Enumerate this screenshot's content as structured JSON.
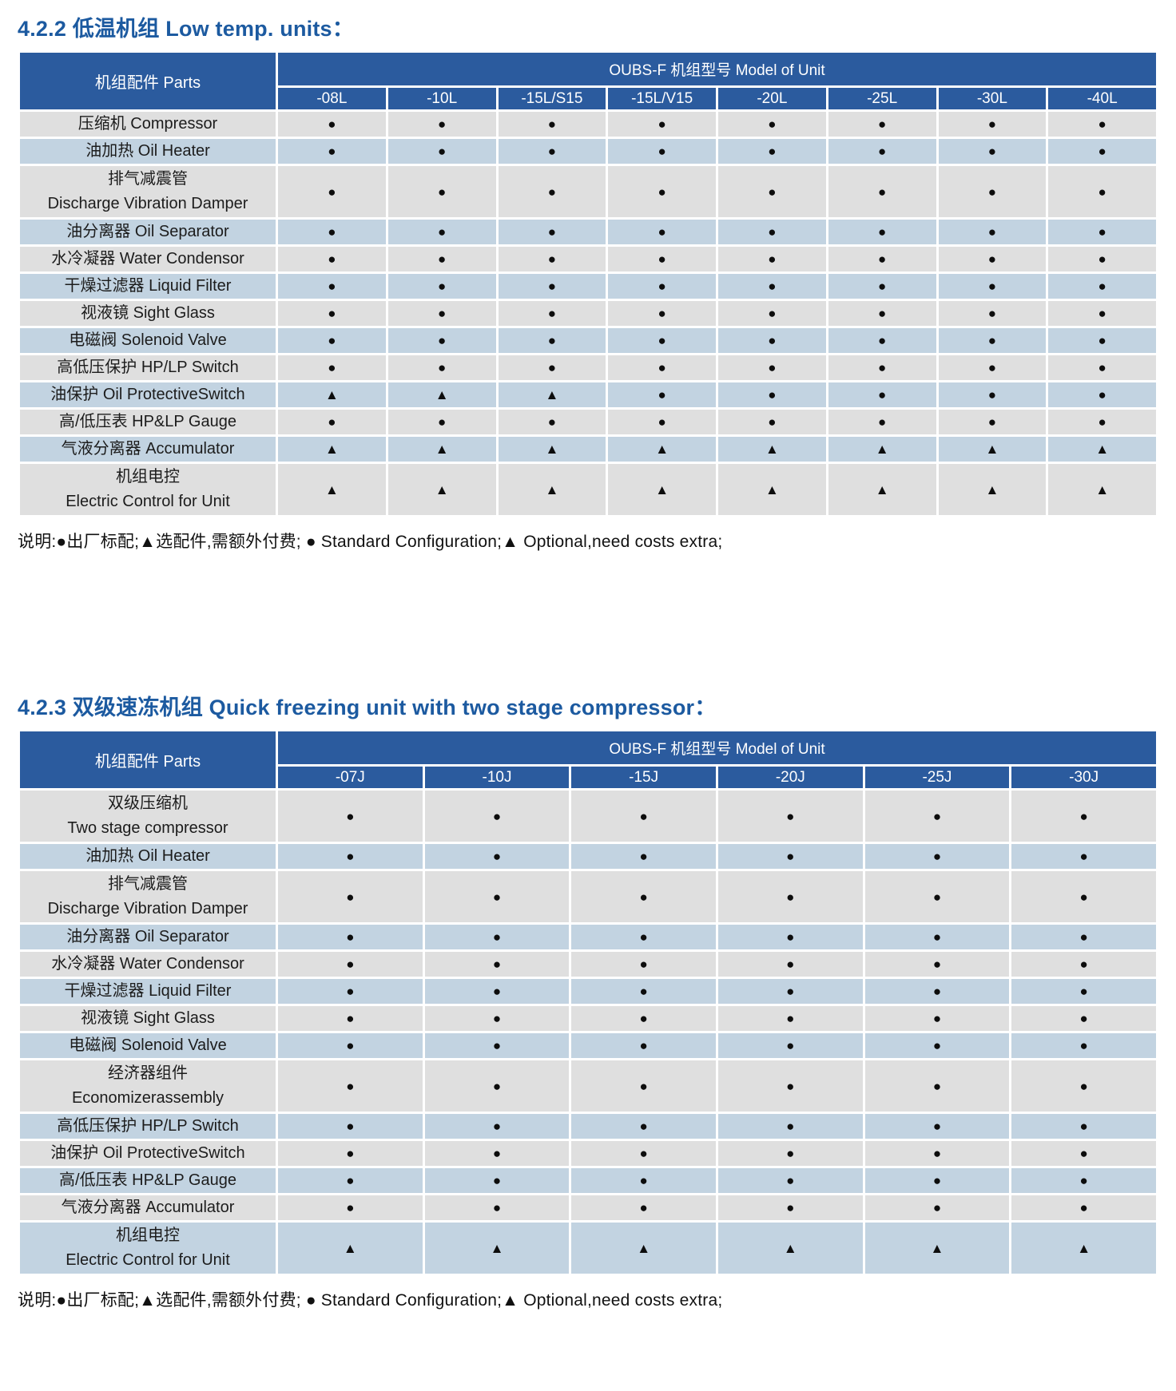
{
  "colors": {
    "title": "#1c5aa0",
    "header_bg": "#2b5b9e",
    "row_gray": "#dfdfdf",
    "row_blue": "#c2d3e1",
    "marker": "#0d0d0d"
  },
  "legend": {
    "standard_marker": "●",
    "optional_marker": "▲",
    "standard_meaning": "出厂标配 Standard Configuration",
    "optional_meaning": "选配件,需额外付费 Optional,need costs extra"
  },
  "tables": [
    {
      "name": "low-temp-units",
      "title": "4.2.2 低温机组 Low temp. units：",
      "parts_header": "机组配件 Parts",
      "models_header": "OUBS-F 机组型号 Model of Unit",
      "models": [
        "-08L",
        "-10L",
        "-15L/S15",
        "-15L/V15",
        "-20L",
        "-25L",
        "-30L",
        "-40L"
      ],
      "rows": [
        {
          "label_lines": [
            "压缩机 Compressor"
          ],
          "marks": [
            "●",
            "●",
            "●",
            "●",
            "●",
            "●",
            "●",
            "●"
          ]
        },
        {
          "label_lines": [
            "油加热 Oil Heater"
          ],
          "marks": [
            "●",
            "●",
            "●",
            "●",
            "●",
            "●",
            "●",
            "●"
          ]
        },
        {
          "label_lines": [
            "排气减震管",
            "Discharge Vibration Damper"
          ],
          "marks": [
            "●",
            "●",
            "●",
            "●",
            "●",
            "●",
            "●",
            "●"
          ]
        },
        {
          "label_lines": [
            "油分离器 Oil Separator"
          ],
          "marks": [
            "●",
            "●",
            "●",
            "●",
            "●",
            "●",
            "●",
            "●"
          ]
        },
        {
          "label_lines": [
            "水冷凝器 Water Condensor"
          ],
          "marks": [
            "●",
            "●",
            "●",
            "●",
            "●",
            "●",
            "●",
            "●"
          ]
        },
        {
          "label_lines": [
            "干燥过滤器 Liquid Filter"
          ],
          "marks": [
            "●",
            "●",
            "●",
            "●",
            "●",
            "●",
            "●",
            "●"
          ]
        },
        {
          "label_lines": [
            "视液镜 Sight Glass"
          ],
          "marks": [
            "●",
            "●",
            "●",
            "●",
            "●",
            "●",
            "●",
            "●"
          ]
        },
        {
          "label_lines": [
            "电磁阀 Solenoid Valve"
          ],
          "marks": [
            "●",
            "●",
            "●",
            "●",
            "●",
            "●",
            "●",
            "●"
          ]
        },
        {
          "label_lines": [
            "高低压保护 HP/LP Switch"
          ],
          "marks": [
            "●",
            "●",
            "●",
            "●",
            "●",
            "●",
            "●",
            "●"
          ]
        },
        {
          "label_lines": [
            "油保护 Oil ProtectiveSwitch"
          ],
          "marks": [
            "▲",
            "▲",
            "▲",
            "●",
            "●",
            "●",
            "●",
            "●"
          ]
        },
        {
          "label_lines": [
            "高/低压表 HP&LP Gauge"
          ],
          "marks": [
            "●",
            "●",
            "●",
            "●",
            "●",
            "●",
            "●",
            "●"
          ]
        },
        {
          "label_lines": [
            "气液分离器 Accumulator"
          ],
          "marks": [
            "▲",
            "▲",
            "▲",
            "▲",
            "▲",
            "▲",
            "▲",
            "▲"
          ]
        },
        {
          "label_lines": [
            "机组电控",
            "Electric Control for Unit"
          ],
          "marks": [
            "▲",
            "▲",
            "▲",
            "▲",
            "▲",
            "▲",
            "▲",
            "▲"
          ]
        }
      ],
      "note": "说明:●出厂标配;▲选配件,需额外付费; ● Standard Configuration;▲ Optional,need costs extra;"
    },
    {
      "name": "quick-freezing-units",
      "title": "4.2.3 双级速冻机组 Quick freezing unit with two stage compressor：",
      "parts_header": "机组配件 Parts",
      "models_header": "OUBS-F 机组型号 Model of Unit",
      "models": [
        "-07J",
        "-10J",
        "-15J",
        "-20J",
        "-25J",
        "-30J"
      ],
      "rows": [
        {
          "label_lines": [
            "双级压缩机",
            "Two stage compressor"
          ],
          "marks": [
            "●",
            "●",
            "●",
            "●",
            "●",
            "●"
          ]
        },
        {
          "label_lines": [
            "油加热 Oil Heater"
          ],
          "marks": [
            "●",
            "●",
            "●",
            "●",
            "●",
            "●"
          ]
        },
        {
          "label_lines": [
            "排气减震管",
            "Discharge Vibration Damper"
          ],
          "marks": [
            "●",
            "●",
            "●",
            "●",
            "●",
            "●"
          ]
        },
        {
          "label_lines": [
            "油分离器 Oil Separator"
          ],
          "marks": [
            "●",
            "●",
            "●",
            "●",
            "●",
            "●"
          ]
        },
        {
          "label_lines": [
            "水冷凝器 Water Condensor"
          ],
          "marks": [
            "●",
            "●",
            "●",
            "●",
            "●",
            "●"
          ]
        },
        {
          "label_lines": [
            "干燥过滤器 Liquid Filter"
          ],
          "marks": [
            "●",
            "●",
            "●",
            "●",
            "●",
            "●"
          ]
        },
        {
          "label_lines": [
            "视液镜 Sight Glass"
          ],
          "marks": [
            "●",
            "●",
            "●",
            "●",
            "●",
            "●"
          ]
        },
        {
          "label_lines": [
            "电磁阀 Solenoid Valve"
          ],
          "marks": [
            "●",
            "●",
            "●",
            "●",
            "●",
            "●"
          ]
        },
        {
          "label_lines": [
            "经济器组件",
            "Economizerassembly"
          ],
          "marks": [
            "●",
            "●",
            "●",
            "●",
            "●",
            "●"
          ]
        },
        {
          "label_lines": [
            "高低压保护 HP/LP Switch"
          ],
          "marks": [
            "●",
            "●",
            "●",
            "●",
            "●",
            "●"
          ]
        },
        {
          "label_lines": [
            "油保护 Oil ProtectiveSwitch"
          ],
          "marks": [
            "●",
            "●",
            "●",
            "●",
            "●",
            "●"
          ]
        },
        {
          "label_lines": [
            "高/低压表 HP&LP Gauge"
          ],
          "marks": [
            "●",
            "●",
            "●",
            "●",
            "●",
            "●"
          ]
        },
        {
          "label_lines": [
            "气液分离器 Accumulator"
          ],
          "marks": [
            "●",
            "●",
            "●",
            "●",
            "●",
            "●"
          ]
        },
        {
          "label_lines": [
            "机组电控",
            "Electric Control for Unit"
          ],
          "marks": [
            "▲",
            "▲",
            "▲",
            "▲",
            "▲",
            "▲"
          ]
        }
      ],
      "note": "说明:●出厂标配;▲选配件,需额外付费; ● Standard Configuration;▲ Optional,need costs extra;"
    }
  ]
}
